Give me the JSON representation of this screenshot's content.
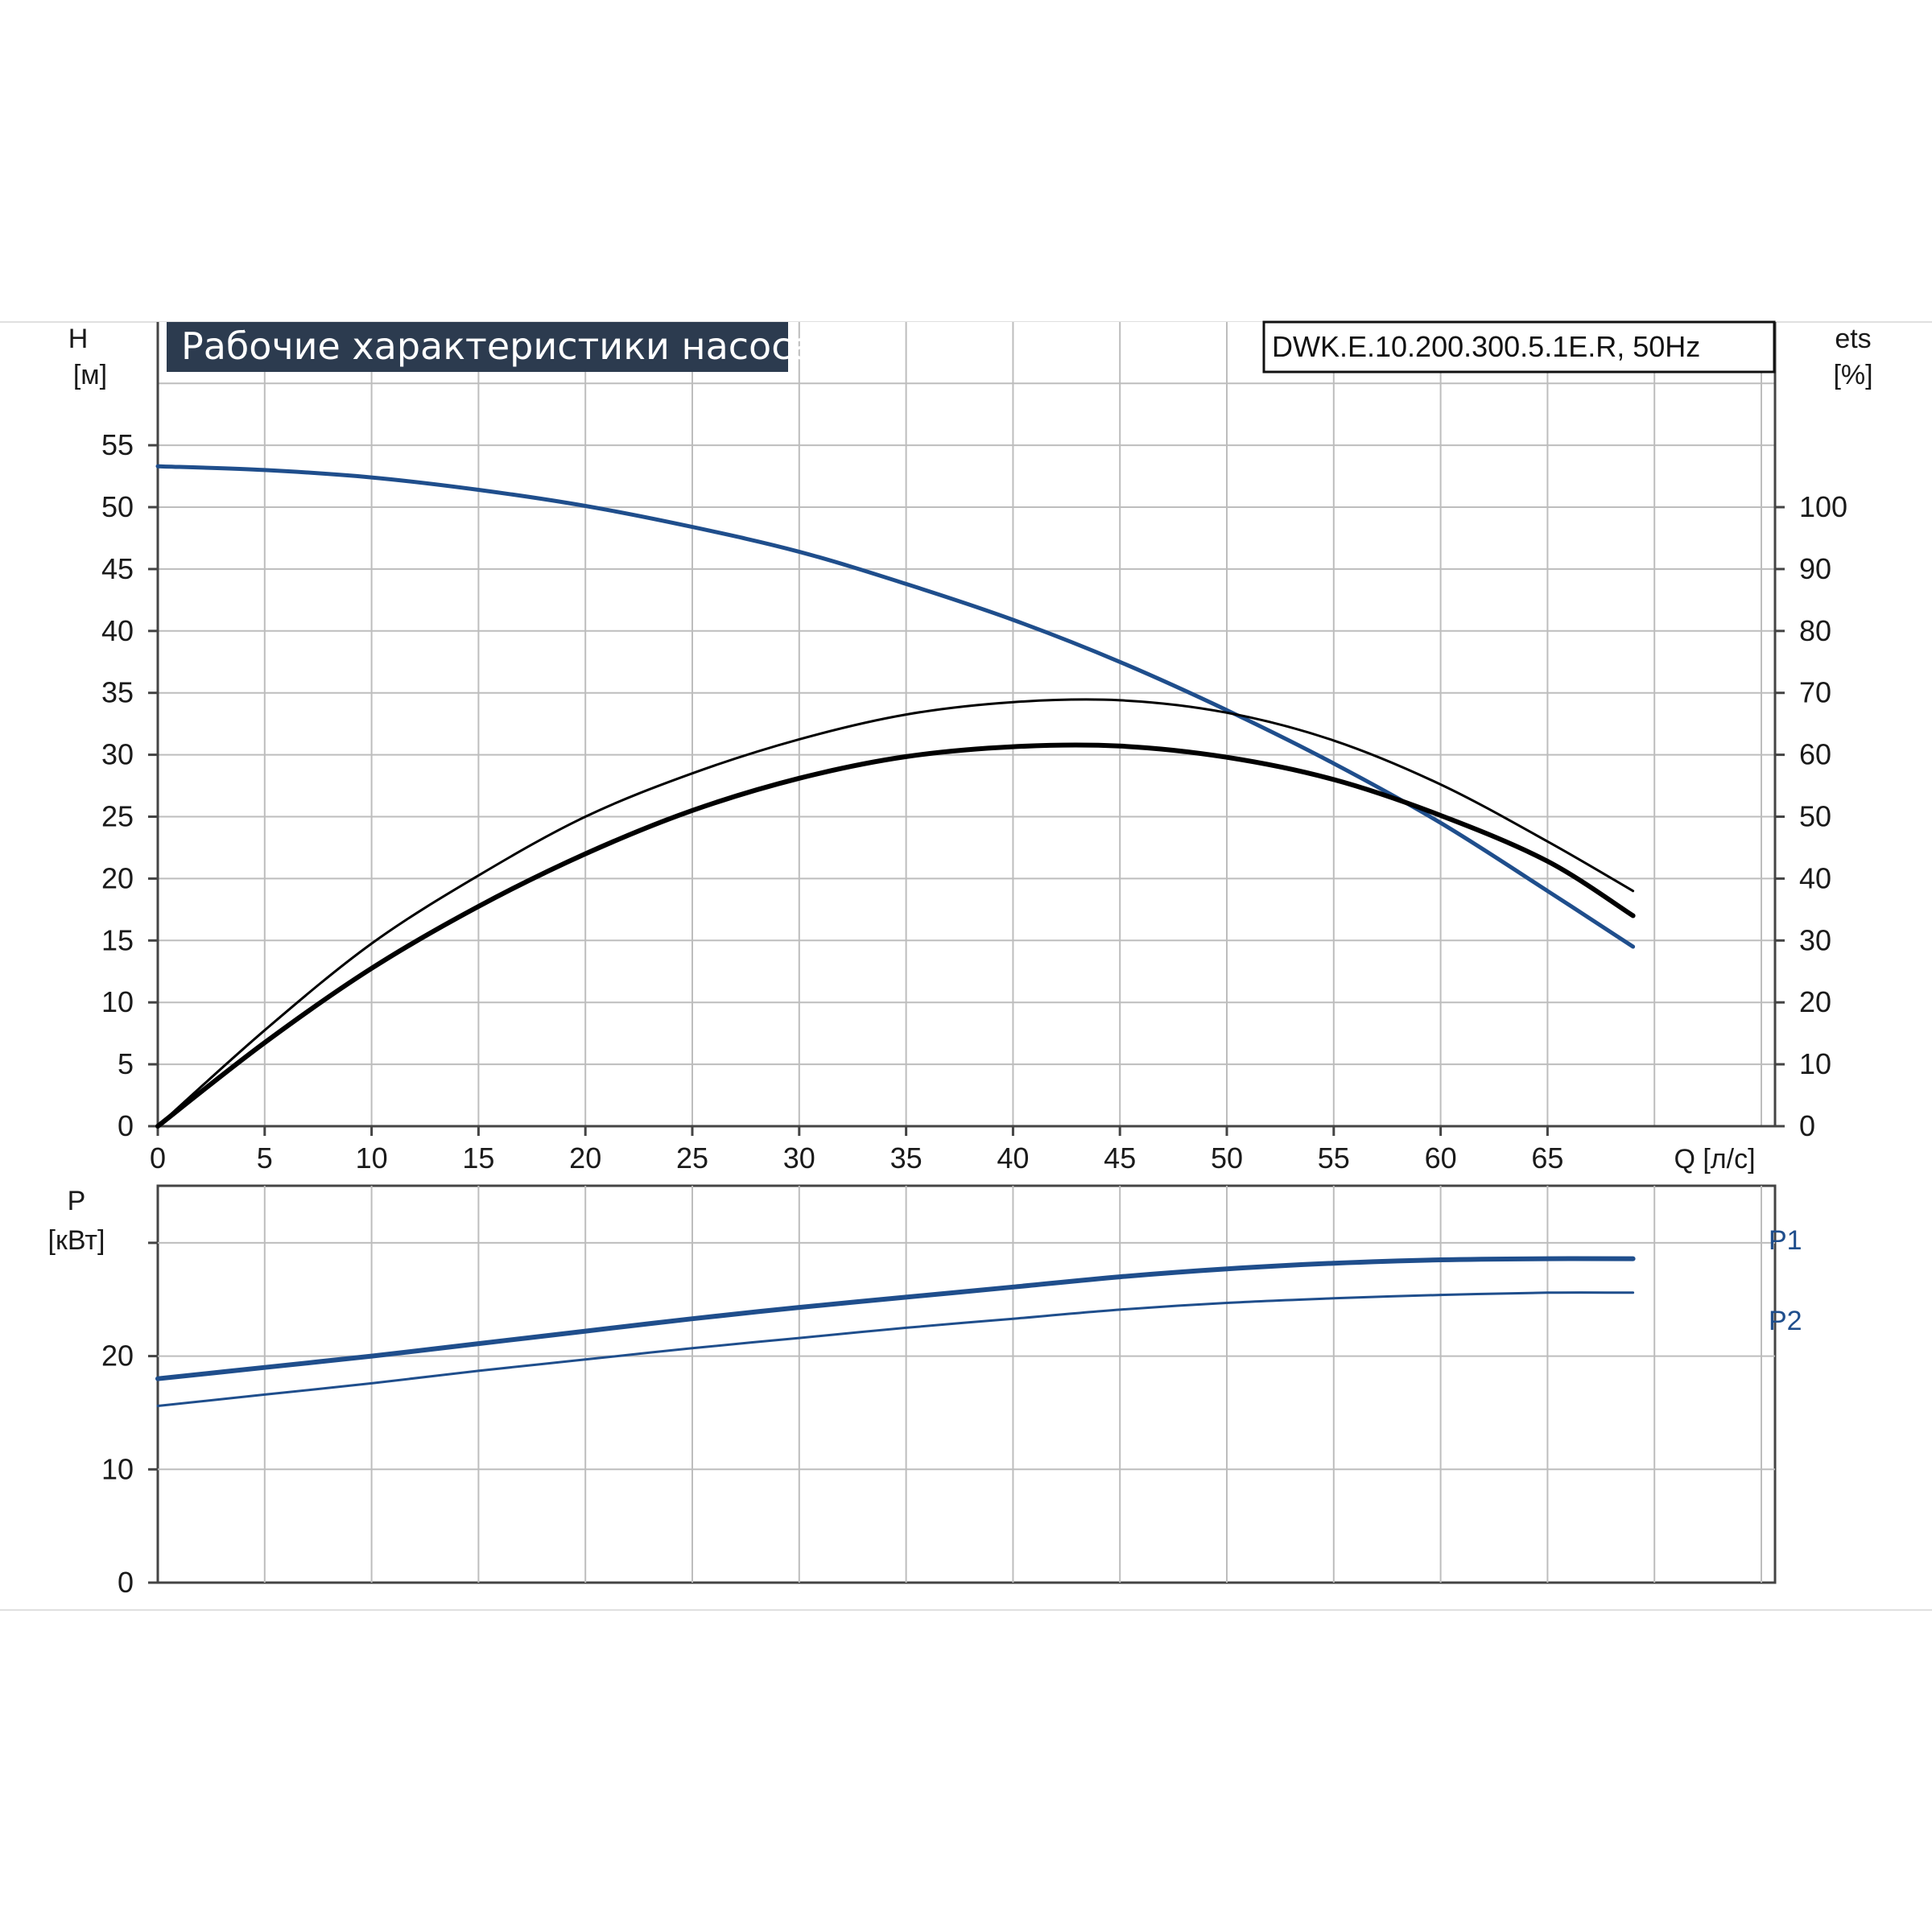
{
  "title": "Рабочие характеристики насоса",
  "model": "DWK.E.10.200.300.5.1E.R, 50Hz",
  "colors": {
    "blue": "#1f4e8c",
    "black": "#000000",
    "grid": "#bdbdbd",
    "title_bg": "#2c3b4f"
  },
  "chart_data": [
    {
      "type": "line",
      "title": "Рабочие характеристики насоса",
      "xlabel": "Q [л/с]",
      "ylabel": "H [м]",
      "y2label": "ets [%]",
      "xlim": [
        0,
        75
      ],
      "ylim": [
        0,
        60
      ],
      "y2lim": [
        0,
        120
      ],
      "grid": true,
      "xticks": [
        "0",
        "5",
        "10",
        "15",
        "20",
        "25",
        "30",
        "35",
        "40",
        "45",
        "50",
        "55",
        "60",
        "65"
      ],
      "yticks": [
        "0",
        "5",
        "10",
        "15",
        "20",
        "25",
        "30",
        "35",
        "40",
        "45",
        "50",
        "55"
      ],
      "y2ticks": [
        "0",
        "10",
        "20",
        "30",
        "40",
        "50",
        "60",
        "70",
        "80",
        "90",
        "100"
      ],
      "series": [
        {
          "axis": "left",
          "color": "#1f4e8c",
          "width": 5,
          "x": [
            0,
            5,
            10,
            15,
            20,
            25,
            30,
            35,
            40,
            45,
            50,
            55,
            60,
            65,
            69
          ],
          "y": [
            53.3,
            53.0,
            52.4,
            51.4,
            50.1,
            48.4,
            46.4,
            43.8,
            40.9,
            37.5,
            33.6,
            29.3,
            24.5,
            19.0,
            14.5
          ]
        },
        {
          "axis": "right",
          "color": "#000000",
          "width": 3,
          "x": [
            0,
            5,
            10,
            15,
            20,
            25,
            30,
            35,
            40,
            45,
            50,
            55,
            60,
            65,
            69
          ],
          "y": [
            0,
            15.5,
            29.5,
            40.5,
            50.0,
            57.0,
            62.5,
            66.5,
            68.5,
            68.8,
            66.8,
            62.3,
            55.2,
            46.0,
            38.0
          ]
        },
        {
          "axis": "right",
          "color": "#000000",
          "width": 6,
          "x": [
            0,
            5,
            10,
            15,
            20,
            25,
            30,
            35,
            40,
            45,
            50,
            55,
            60,
            65,
            69
          ],
          "y": [
            0,
            13.5,
            25.5,
            35.5,
            44.0,
            51.0,
            56.2,
            59.7,
            61.3,
            61.4,
            59.6,
            56.0,
            50.2,
            42.8,
            34.0
          ]
        }
      ]
    },
    {
      "type": "line",
      "xlabel": "",
      "ylabel": "P [кВт]",
      "xlim": [
        0,
        75
      ],
      "ylim": [
        0,
        30
      ],
      "grid": true,
      "yticks": [
        "0",
        "10",
        "20"
      ],
      "series": [
        {
          "name": "P1",
          "color": "#1f4e8c",
          "width": 6,
          "x": [
            0,
            5,
            10,
            15,
            20,
            25,
            30,
            35,
            40,
            45,
            50,
            55,
            60,
            65,
            69
          ],
          "y": [
            18.0,
            19.0,
            20.0,
            21.1,
            22.2,
            23.3,
            24.3,
            25.2,
            26.1,
            27.0,
            27.7,
            28.2,
            28.5,
            28.6,
            28.6
          ]
        },
        {
          "name": "P2",
          "color": "#1f4e8c",
          "width": 3,
          "x": [
            0,
            5,
            10,
            15,
            20,
            25,
            30,
            35,
            40,
            45,
            50,
            55,
            60,
            65,
            69
          ],
          "y": [
            15.6,
            16.6,
            17.6,
            18.7,
            19.7,
            20.7,
            21.6,
            22.5,
            23.3,
            24.1,
            24.7,
            25.1,
            25.4,
            25.6,
            25.6
          ]
        }
      ]
    }
  ]
}
